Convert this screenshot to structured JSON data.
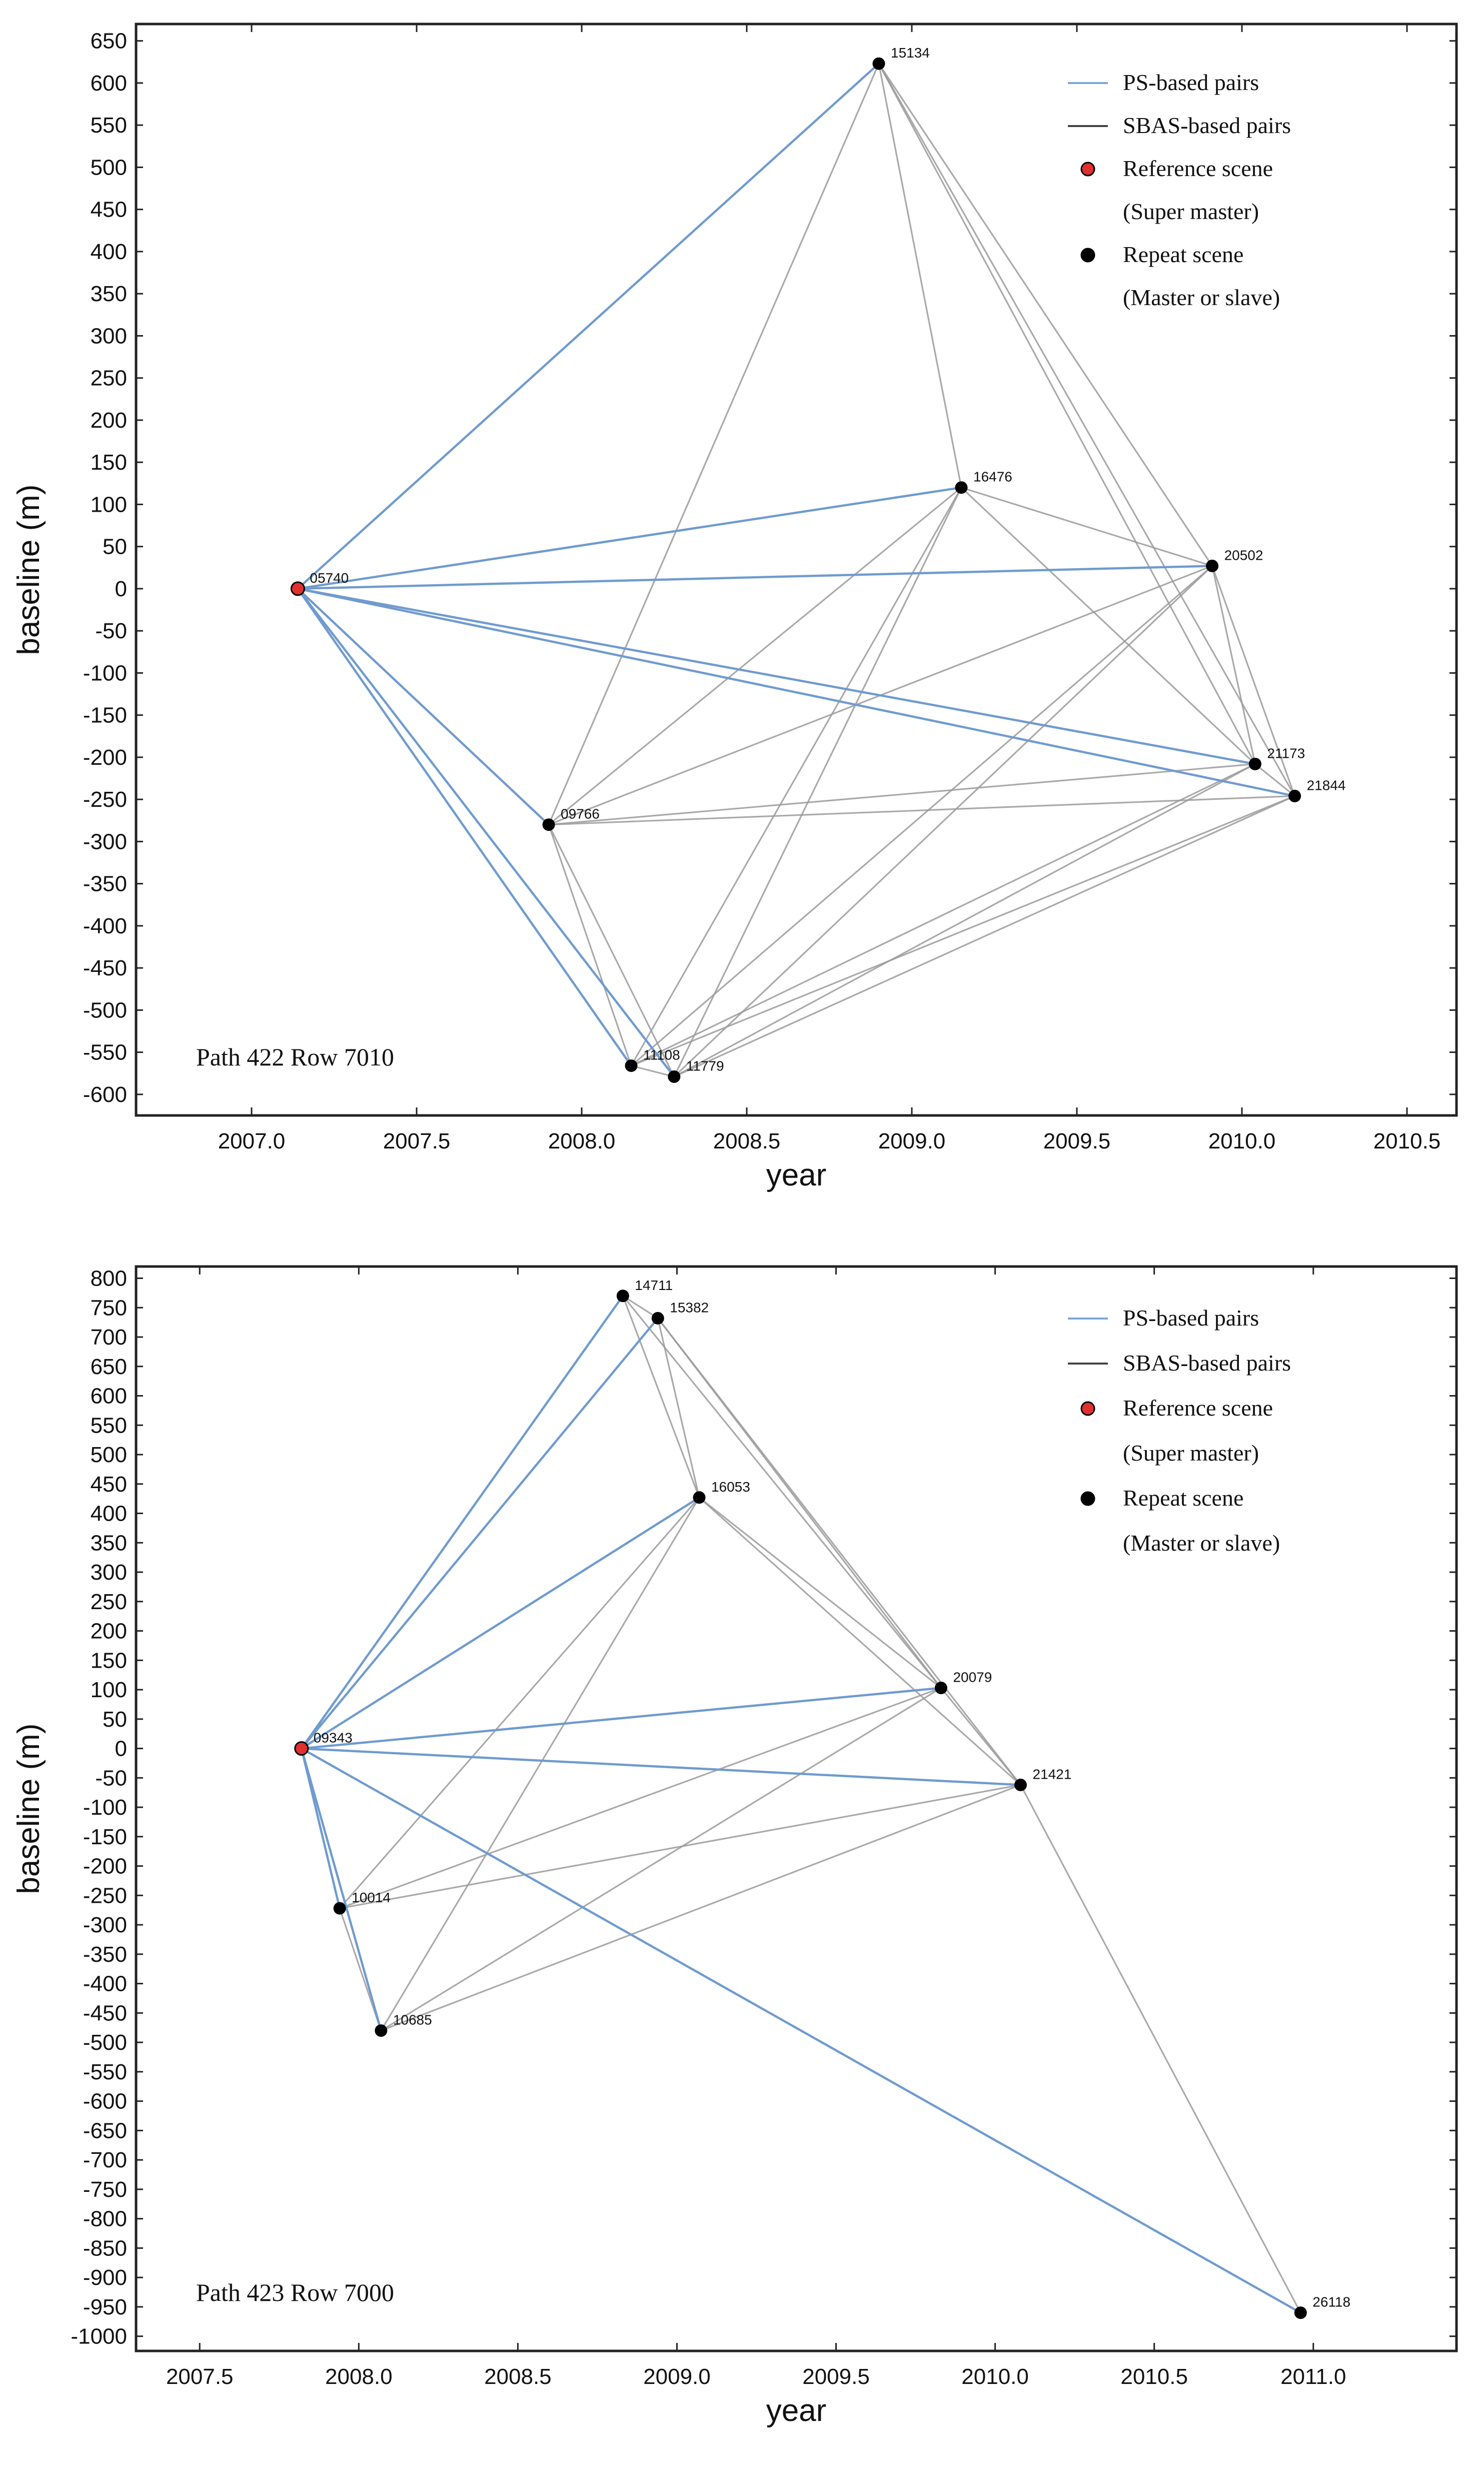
{
  "chart_data": [
    {
      "type": "scatter",
      "title": "",
      "xlabel": "year",
      "ylabel": "baseline (m)",
      "annotation": "Path 422 Row 7010",
      "xlim": [
        2006.65,
        2010.65
      ],
      "ylim": [
        -625,
        670
      ],
      "x_ticks": [
        2007.0,
        2007.5,
        2008.0,
        2008.5,
        2009.0,
        2009.5,
        2010.0,
        2010.5
      ],
      "x_tick_labels": [
        "2007.0",
        "2007.5",
        "2008.0",
        "2008.5",
        "2009.0",
        "2009.5",
        "2010.0",
        "2010.5"
      ],
      "y_ticks": [
        650,
        600,
        550,
        500,
        450,
        400,
        350,
        300,
        250,
        200,
        150,
        100,
        50,
        0,
        -50,
        -100,
        -150,
        -200,
        -250,
        -300,
        -350,
        -400,
        -450,
        -500,
        -550,
        -600
      ],
      "y_tick_labels": [
        "650",
        "600",
        "550",
        "500",
        "450",
        "400",
        "350",
        "300",
        "250",
        "200",
        "150",
        "100",
        "50",
        "0",
        "-50",
        "-100",
        "-150",
        "-200",
        "-250",
        "-300",
        "-350",
        "-400",
        "-450",
        "-500",
        "-550",
        "-600"
      ],
      "legend": {
        "position": "top-right",
        "entries": [
          {
            "label": "PS-based pairs",
            "kind": "line",
            "color": "#7ba7d6"
          },
          {
            "label": "SBAS-based pairs",
            "kind": "line",
            "color": "#444444"
          },
          {
            "label": "Reference scene",
            "kind": "marker",
            "color": "#e03030"
          },
          {
            "label": "(Super master)",
            "kind": "text"
          },
          {
            "label": "Repeat scene",
            "kind": "marker",
            "color": "#000000"
          },
          {
            "label": "(Master or slave)",
            "kind": "text"
          }
        ]
      },
      "points": [
        {
          "id": "05740",
          "x": 2007.14,
          "y": 0,
          "role": "reference"
        },
        {
          "id": "09766",
          "x": 2007.9,
          "y": -280,
          "role": "repeat"
        },
        {
          "id": "11108",
          "x": 2008.15,
          "y": -566,
          "role": "repeat"
        },
        {
          "id": "11779",
          "x": 2008.28,
          "y": -579,
          "role": "repeat"
        },
        {
          "id": "15134",
          "x": 2008.9,
          "y": 623,
          "role": "repeat"
        },
        {
          "id": "16476",
          "x": 2009.15,
          "y": 120,
          "role": "repeat"
        },
        {
          "id": "20502",
          "x": 2009.91,
          "y": 27,
          "role": "repeat"
        },
        {
          "id": "21173",
          "x": 2010.04,
          "y": -208,
          "role": "repeat"
        },
        {
          "id": "21844",
          "x": 2010.16,
          "y": -246,
          "role": "repeat"
        }
      ],
      "ps_pairs": [
        [
          "05740",
          "15134"
        ],
        [
          "05740",
          "16476"
        ],
        [
          "05740",
          "20502"
        ],
        [
          "05740",
          "21173"
        ],
        [
          "05740",
          "21844"
        ],
        [
          "05740",
          "09766"
        ],
        [
          "05740",
          "11108"
        ],
        [
          "05740",
          "11779"
        ]
      ],
      "sbas_pairs": [
        [
          "15134",
          "16476"
        ],
        [
          "15134",
          "20502"
        ],
        [
          "15134",
          "21173"
        ],
        [
          "15134",
          "21844"
        ],
        [
          "15134",
          "09766"
        ],
        [
          "16476",
          "20502"
        ],
        [
          "16476",
          "21173"
        ],
        [
          "16476",
          "09766"
        ],
        [
          "16476",
          "11108"
        ],
        [
          "16476",
          "11779"
        ],
        [
          "20502",
          "21173"
        ],
        [
          "20502",
          "21844"
        ],
        [
          "20502",
          "09766"
        ],
        [
          "20502",
          "11108"
        ],
        [
          "20502",
          "11779"
        ],
        [
          "21173",
          "21844"
        ],
        [
          "21173",
          "09766"
        ],
        [
          "21173",
          "11108"
        ],
        [
          "21173",
          "11779"
        ],
        [
          "21844",
          "09766"
        ],
        [
          "21844",
          "11108"
        ],
        [
          "21844",
          "11779"
        ],
        [
          "09766",
          "11108"
        ],
        [
          "09766",
          "11779"
        ],
        [
          "11108",
          "11779"
        ]
      ]
    },
    {
      "type": "scatter",
      "title": "",
      "xlabel": "year",
      "ylabel": "baseline (m)",
      "annotation": "Path 423 Row 7000",
      "xlim": [
        2007.3,
        2011.45
      ],
      "ylim": [
        -1025,
        820
      ],
      "x_ticks": [
        2007.5,
        2008.0,
        2008.5,
        2009.0,
        2009.5,
        2010.0,
        2010.5,
        2011.0
      ],
      "x_tick_labels": [
        "2007.5",
        "2008.0",
        "2008.5",
        "2009.0",
        "2009.5",
        "2010.0",
        "2010.5",
        "2011.0"
      ],
      "y_ticks": [
        800,
        750,
        700,
        650,
        600,
        550,
        500,
        450,
        400,
        350,
        300,
        250,
        200,
        150,
        100,
        50,
        0,
        -50,
        -100,
        -150,
        -200,
        -250,
        -300,
        -350,
        -400,
        -450,
        -500,
        -550,
        -600,
        -650,
        -700,
        -750,
        -800,
        -850,
        -900,
        -950,
        -1000
      ],
      "y_tick_labels": [
        "800",
        "750",
        "700",
        "650",
        "600",
        "550",
        "500",
        "450",
        "400",
        "350",
        "300",
        "250",
        "200",
        "150",
        "100",
        "50",
        "0",
        "-50",
        "-100",
        "-150",
        "-200",
        "-250",
        "-300",
        "-350",
        "-400",
        "-450",
        "-500",
        "-550",
        "-600",
        "-650",
        "-700",
        "-750",
        "-800",
        "-850",
        "-900",
        "-950",
        "-1000"
      ],
      "legend": {
        "position": "top-right",
        "entries": [
          {
            "label": "PS-based pairs",
            "kind": "line",
            "color": "#7ba7d6"
          },
          {
            "label": "SBAS-based pairs",
            "kind": "line",
            "color": "#444444"
          },
          {
            "label": "Reference scene",
            "kind": "marker",
            "color": "#e03030"
          },
          {
            "label": "(Super master)",
            "kind": "text"
          },
          {
            "label": "Repeat scene",
            "kind": "marker",
            "color": "#000000"
          },
          {
            "label": "(Master or slave)",
            "kind": "text"
          }
        ]
      },
      "points": [
        {
          "id": "09343",
          "x": 2007.82,
          "y": 0,
          "role": "reference"
        },
        {
          "id": "10014",
          "x": 2007.94,
          "y": -272,
          "role": "repeat"
        },
        {
          "id": "10685",
          "x": 2008.07,
          "y": -480,
          "role": "repeat"
        },
        {
          "id": "14711",
          "x": 2008.83,
          "y": 770,
          "role": "repeat"
        },
        {
          "id": "15382",
          "x": 2008.94,
          "y": 732,
          "role": "repeat"
        },
        {
          "id": "16053",
          "x": 2009.07,
          "y": 427,
          "role": "repeat"
        },
        {
          "id": "20079",
          "x": 2009.83,
          "y": 103,
          "role": "repeat"
        },
        {
          "id": "21421",
          "x": 2010.08,
          "y": -62,
          "role": "repeat"
        },
        {
          "id": "26118",
          "x": 2010.96,
          "y": -960,
          "role": "repeat"
        }
      ],
      "ps_pairs": [
        [
          "09343",
          "14711"
        ],
        [
          "09343",
          "15382"
        ],
        [
          "09343",
          "16053"
        ],
        [
          "09343",
          "20079"
        ],
        [
          "09343",
          "21421"
        ],
        [
          "09343",
          "26118"
        ],
        [
          "09343",
          "10014"
        ],
        [
          "09343",
          "10685"
        ]
      ],
      "sbas_pairs": [
        [
          "14711",
          "15382"
        ],
        [
          "14711",
          "16053"
        ],
        [
          "14711",
          "20079"
        ],
        [
          "15382",
          "16053"
        ],
        [
          "15382",
          "20079"
        ],
        [
          "15382",
          "21421"
        ],
        [
          "16053",
          "20079"
        ],
        [
          "16053",
          "21421"
        ],
        [
          "16053",
          "10014"
        ],
        [
          "16053",
          "10685"
        ],
        [
          "20079",
          "21421"
        ],
        [
          "20079",
          "10014"
        ],
        [
          "20079",
          "10685"
        ],
        [
          "21421",
          "10014"
        ],
        [
          "21421",
          "10685"
        ],
        [
          "21421",
          "26118"
        ],
        [
          "10014",
          "10685"
        ]
      ]
    }
  ]
}
